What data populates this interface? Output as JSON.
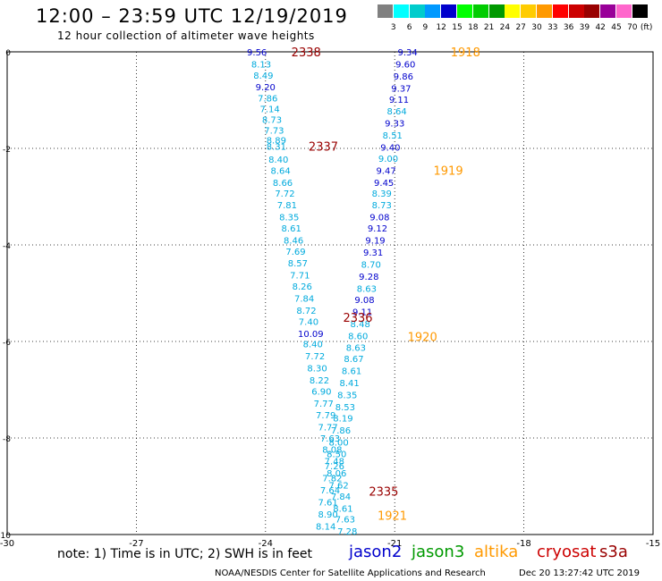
{
  "header": {
    "title": "12:00 – 23:59 UTC 12/19/2019",
    "subtitle": "12 hour collection of altimeter wave heights"
  },
  "colorbar": {
    "ticks": [
      "3",
      "6",
      "9",
      "12",
      "15",
      "18",
      "21",
      "24",
      "27",
      "30",
      "33",
      "36",
      "39",
      "42",
      "45",
      "70"
    ],
    "unit": "(ft)",
    "colors": [
      "#808080",
      "#00ffff",
      "#00cccc",
      "#0099ff",
      "#0000cc",
      "#00ff00",
      "#00cc00",
      "#009900",
      "#ffff00",
      "#ffcc00",
      "#ff9900",
      "#ff0000",
      "#cc0000",
      "#990000",
      "#990099",
      "#ff66cc",
      "#000000"
    ]
  },
  "note": "note: 1) Time is in UTC; 2) SWH is in feet",
  "legend": [
    {
      "label": "jason2",
      "color": "#0000cc"
    },
    {
      "label": "jason3",
      "color": "#009900"
    },
    {
      "label": "altika",
      "color": "#ff9900"
    },
    {
      "label": "cryosat",
      "color": "#cc0000"
    },
    {
      "label": "s3a",
      "color": "#990000"
    }
  ],
  "footer": "NOAA/NESDIS Center for Satellite Applications and Research",
  "timestamp": "Dec 20 13:27:42 UTC 2019",
  "chart_data": {
    "type": "scatter",
    "xlim": [
      -30,
      -15
    ],
    "ylim": [
      -10,
      0
    ],
    "xticks": [
      -30,
      -27,
      -24,
      -21,
      -18,
      -15
    ],
    "yticks": [
      0,
      -2,
      -4,
      -6,
      -8,
      -10
    ],
    "grid": true,
    "track_labels": [
      {
        "text": "2338",
        "x": -23.4,
        "y": 0.0,
        "color": "#990000"
      },
      {
        "text": "2337",
        "x": -23.0,
        "y": -1.95,
        "color": "#990000"
      },
      {
        "text": "2336",
        "x": -22.2,
        "y": -5.5,
        "color": "#990000"
      },
      {
        "text": "2335",
        "x": -21.6,
        "y": -9.1,
        "color": "#990000"
      },
      {
        "text": "1918",
        "x": -19.7,
        "y": 0.0,
        "color": "#ff9900"
      },
      {
        "text": "1919",
        "x": -20.1,
        "y": -2.45,
        "color": "#ff9900"
      },
      {
        "text": "1920",
        "x": -20.7,
        "y": -5.9,
        "color": "#ff9900"
      },
      {
        "text": "1921",
        "x": -21.4,
        "y": -9.6,
        "color": "#ff9900"
      }
    ],
    "points": [
      {
        "v": "9.56",
        "x": -24.2,
        "y": 0.0,
        "c": "#0000cc"
      },
      {
        "v": "8.13",
        "x": -24.1,
        "y": -0.25,
        "c": "#00aadd"
      },
      {
        "v": "8.49",
        "x": -24.05,
        "y": -0.48,
        "c": "#00aadd"
      },
      {
        "v": "9.20",
        "x": -24.0,
        "y": -0.72,
        "c": "#0000cc"
      },
      {
        "v": "7.86",
        "x": -23.95,
        "y": -0.95,
        "c": "#00aadd"
      },
      {
        "v": "7.14",
        "x": -23.9,
        "y": -1.18,
        "c": "#00aadd"
      },
      {
        "v": "8.73",
        "x": -23.85,
        "y": -1.4,
        "c": "#00aadd"
      },
      {
        "v": "7.73",
        "x": -23.8,
        "y": -1.62,
        "c": "#00aadd"
      },
      {
        "v": "8.89",
        "x": -23.75,
        "y": -1.82,
        "c": "#00aadd"
      },
      {
        "v": "8.31",
        "x": -23.75,
        "y": -1.95,
        "c": "#00aadd"
      },
      {
        "v": "8.40",
        "x": -23.7,
        "y": -2.22,
        "c": "#00aadd"
      },
      {
        "v": "8.64",
        "x": -23.65,
        "y": -2.45,
        "c": "#00aadd"
      },
      {
        "v": "8.66",
        "x": -23.6,
        "y": -2.7,
        "c": "#00aadd"
      },
      {
        "v": "7.72",
        "x": -23.55,
        "y": -2.93,
        "c": "#00aadd"
      },
      {
        "v": "7.81",
        "x": -23.5,
        "y": -3.17,
        "c": "#00aadd"
      },
      {
        "v": "8.35",
        "x": -23.45,
        "y": -3.42,
        "c": "#00aadd"
      },
      {
        "v": "8.61",
        "x": -23.4,
        "y": -3.65,
        "c": "#00aadd"
      },
      {
        "v": "8.46",
        "x": -23.35,
        "y": -3.9,
        "c": "#00aadd"
      },
      {
        "v": "7.69",
        "x": -23.3,
        "y": -4.13,
        "c": "#00aadd"
      },
      {
        "v": "8.57",
        "x": -23.25,
        "y": -4.37,
        "c": "#00aadd"
      },
      {
        "v": "7.71",
        "x": -23.2,
        "y": -4.62,
        "c": "#00aadd"
      },
      {
        "v": "8.26",
        "x": -23.15,
        "y": -4.85,
        "c": "#00aadd"
      },
      {
        "v": "7.84",
        "x": -23.1,
        "y": -5.1,
        "c": "#00aadd"
      },
      {
        "v": "8.72",
        "x": -23.05,
        "y": -5.35,
        "c": "#00aadd"
      },
      {
        "v": "7.40",
        "x": -23.0,
        "y": -5.58,
        "c": "#00aadd"
      },
      {
        "v": "10.09",
        "x": -22.95,
        "y": -5.83,
        "c": "#0000cc"
      },
      {
        "v": "8.40",
        "x": -22.9,
        "y": -6.05,
        "c": "#00aadd"
      },
      {
        "v": "7.72",
        "x": -22.85,
        "y": -6.3,
        "c": "#00aadd"
      },
      {
        "v": "8.30",
        "x": -22.8,
        "y": -6.55,
        "c": "#00aadd"
      },
      {
        "v": "8.22",
        "x": -22.75,
        "y": -6.8,
        "c": "#00aadd"
      },
      {
        "v": "6.90",
        "x": -22.7,
        "y": -7.03,
        "c": "#00aadd"
      },
      {
        "v": "7.77",
        "x": -22.65,
        "y": -7.28,
        "c": "#00aadd"
      },
      {
        "v": "7.79",
        "x": -22.6,
        "y": -7.52,
        "c": "#00aadd"
      },
      {
        "v": "7.77",
        "x": -22.55,
        "y": -7.77,
        "c": "#00aadd"
      },
      {
        "v": "7.63",
        "x": -22.5,
        "y": -8.0,
        "c": "#00aadd"
      },
      {
        "v": "8.08",
        "x": -22.45,
        "y": -8.23,
        "c": "#00aadd"
      },
      {
        "v": "7.48",
        "x": -22.4,
        "y": -8.47,
        "c": "#00aadd"
      },
      {
        "v": "8.06",
        "x": -22.35,
        "y": -8.72,
        "c": "#00aadd"
      },
      {
        "v": "7.62",
        "x": -22.3,
        "y": -8.97,
        "c": "#00aadd"
      },
      {
        "v": "7.84",
        "x": -22.25,
        "y": -9.2,
        "c": "#00aadd"
      },
      {
        "v": "8.61",
        "x": -22.2,
        "y": -9.45,
        "c": "#00aadd"
      },
      {
        "v": "7.63",
        "x": -22.15,
        "y": -9.68,
        "c": "#00aadd"
      },
      {
        "v": "7.28",
        "x": -22.1,
        "y": -9.93,
        "c": "#00aadd"
      },
      {
        "v": "9.34",
        "x": -20.7,
        "y": 0.0,
        "c": "#0000cc"
      },
      {
        "v": "9.60",
        "x": -20.75,
        "y": -0.25,
        "c": "#0000cc"
      },
      {
        "v": "9.86",
        "x": -20.8,
        "y": -0.5,
        "c": "#0000cc"
      },
      {
        "v": "9.37",
        "x": -20.85,
        "y": -0.75,
        "c": "#0000cc"
      },
      {
        "v": "9.11",
        "x": -20.9,
        "y": -0.98,
        "c": "#0000cc"
      },
      {
        "v": "8.64",
        "x": -20.95,
        "y": -1.22,
        "c": "#00aadd"
      },
      {
        "v": "9.33",
        "x": -21.0,
        "y": -1.47,
        "c": "#0000cc"
      },
      {
        "v": "8.51",
        "x": -21.05,
        "y": -1.72,
        "c": "#00aadd"
      },
      {
        "v": "9.40",
        "x": -21.1,
        "y": -1.97,
        "c": "#0000cc"
      },
      {
        "v": "9.00",
        "x": -21.15,
        "y": -2.2,
        "c": "#00aadd"
      },
      {
        "v": "9.47",
        "x": -21.2,
        "y": -2.45,
        "c": "#0000cc"
      },
      {
        "v": "9.45",
        "x": -21.25,
        "y": -2.7,
        "c": "#0000cc"
      },
      {
        "v": "8.39",
        "x": -21.3,
        "y": -2.93,
        "c": "#00aadd"
      },
      {
        "v": "8.73",
        "x": -21.3,
        "y": -3.17,
        "c": "#00aadd"
      },
      {
        "v": "9.08",
        "x": -21.35,
        "y": -3.42,
        "c": "#0000cc"
      },
      {
        "v": "9.12",
        "x": -21.4,
        "y": -3.65,
        "c": "#0000cc"
      },
      {
        "v": "9.19",
        "x": -21.45,
        "y": -3.9,
        "c": "#0000cc"
      },
      {
        "v": "9.31",
        "x": -21.5,
        "y": -4.15,
        "c": "#0000cc"
      },
      {
        "v": "8.70",
        "x": -21.55,
        "y": -4.4,
        "c": "#00aadd"
      },
      {
        "v": "9.28",
        "x": -21.6,
        "y": -4.65,
        "c": "#0000cc"
      },
      {
        "v": "8.63",
        "x": -21.65,
        "y": -4.9,
        "c": "#00aadd"
      },
      {
        "v": "9.08",
        "x": -21.7,
        "y": -5.13,
        "c": "#0000cc"
      },
      {
        "v": "9.11",
        "x": -21.75,
        "y": -5.38,
        "c": "#0000cc"
      },
      {
        "v": "8.48",
        "x": -21.8,
        "y": -5.63,
        "c": "#00aadd"
      },
      {
        "v": "8.60",
        "x": -21.85,
        "y": -5.88,
        "c": "#00aadd"
      },
      {
        "v": "8.63",
        "x": -21.9,
        "y": -6.12,
        "c": "#00aadd"
      },
      {
        "v": "8.67",
        "x": -21.95,
        "y": -6.35,
        "c": "#00aadd"
      },
      {
        "v": "8.61",
        "x": -22.0,
        "y": -6.6,
        "c": "#00aadd"
      },
      {
        "v": "8.41",
        "x": -22.05,
        "y": -6.85,
        "c": "#00aadd"
      },
      {
        "v": "8.35",
        "x": -22.1,
        "y": -7.1,
        "c": "#00aadd"
      },
      {
        "v": "8.53",
        "x": -22.15,
        "y": -7.35,
        "c": "#00aadd"
      },
      {
        "v": "8.19",
        "x": -22.2,
        "y": -7.58,
        "c": "#00aadd"
      },
      {
        "v": "7.86",
        "x": -22.25,
        "y": -7.83,
        "c": "#00aadd"
      },
      {
        "v": "8.00",
        "x": -22.3,
        "y": -8.08,
        "c": "#00aadd"
      },
      {
        "v": "8.50",
        "x": -22.35,
        "y": -8.32,
        "c": "#00aadd"
      },
      {
        "v": "7.26",
        "x": -22.4,
        "y": -8.57,
        "c": "#00aadd"
      },
      {
        "v": "7.82",
        "x": -22.45,
        "y": -8.82,
        "c": "#00aadd"
      },
      {
        "v": "7.64",
        "x": -22.5,
        "y": -9.07,
        "c": "#00aadd"
      },
      {
        "v": "7.61",
        "x": -22.55,
        "y": -9.32,
        "c": "#00aadd"
      },
      {
        "v": "8.90",
        "x": -22.55,
        "y": -9.57,
        "c": "#00aadd"
      },
      {
        "v": "8.14",
        "x": -22.6,
        "y": -9.82,
        "c": "#00aadd"
      }
    ]
  }
}
